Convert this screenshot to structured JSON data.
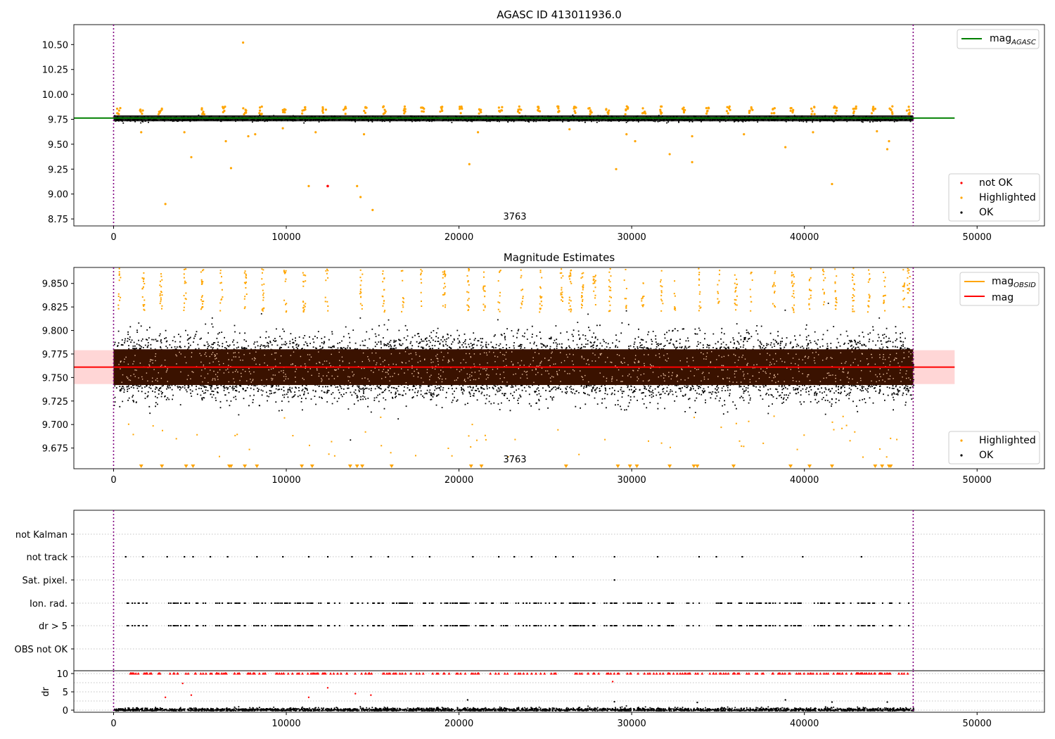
{
  "chart_data": [
    {
      "type": "scatter",
      "title": "AGASC ID 413011936.0",
      "xlabel": "",
      "ylabel": "",
      "xlim": [
        -2300,
        53900
      ],
      "ylim": [
        8.68,
        10.7
      ],
      "xticks": [
        0,
        10000,
        20000,
        30000,
        40000,
        50000
      ],
      "xtick_labels": [
        "0",
        "10000",
        "20000",
        "30000",
        "40000",
        "50000"
      ],
      "yticks": [
        8.75,
        9.0,
        9.25,
        9.5,
        9.75,
        10.0,
        10.25,
        10.5
      ],
      "ytick_labels": [
        "8.75",
        "9.00",
        "9.25",
        "9.50",
        "9.75",
        "10.00",
        "10.25",
        "10.50"
      ],
      "vlines": [
        0,
        46300
      ],
      "annotation": {
        "text": "3763",
        "x": 23000,
        "y": 8.73
      },
      "reference_line": {
        "name": "mag_AGASC",
        "value": 9.762,
        "x_range": [
          -2300,
          48700
        ],
        "color": "#008000"
      },
      "legend_top": [
        {
          "label": "mag",
          "subscript": "AGASC",
          "color": "#008000",
          "marker": "line"
        }
      ],
      "legend_bottom": [
        {
          "label": "not OK",
          "color": "#ff0000",
          "marker": "dot"
        },
        {
          "label": "Highlighted",
          "color": "#ffa500",
          "marker": "dot"
        },
        {
          "label": "OK",
          "color": "#000000",
          "marker": "dot"
        }
      ],
      "series": [
        {
          "name": "OK",
          "color": "#000000",
          "description_center": 9.76,
          "x_range": [
            0,
            46300
          ]
        },
        {
          "name": "Highlighted",
          "color": "#ffa500",
          "points": [
            [
              7500,
              10.52
            ],
            [
              3000,
              8.9
            ],
            [
              4500,
              9.37
            ],
            [
              6800,
              9.26
            ],
            [
              6500,
              9.53
            ],
            [
              11300,
              9.08
            ],
            [
              14100,
              9.08
            ],
            [
              14300,
              8.97
            ],
            [
              15000,
              8.84
            ],
            [
              20600,
              9.3
            ],
            [
              29100,
              9.25
            ],
            [
              30200,
              9.53
            ],
            [
              32200,
              9.4
            ],
            [
              33500,
              9.32
            ],
            [
              38900,
              9.47
            ],
            [
              41600,
              9.1
            ],
            [
              44800,
              9.45
            ],
            [
              44900,
              9.53
            ],
            [
              1600,
              9.62
            ],
            [
              4100,
              9.62
            ],
            [
              7800,
              9.58
            ],
            [
              8200,
              9.6
            ],
            [
              9800,
              9.66
            ],
            [
              11700,
              9.62
            ],
            [
              14500,
              9.6
            ],
            [
              21100,
              9.62
            ],
            [
              26400,
              9.65
            ],
            [
              29700,
              9.6
            ],
            [
              33500,
              9.58
            ],
            [
              36500,
              9.6
            ],
            [
              40500,
              9.62
            ],
            [
              44200,
              9.63
            ]
          ]
        },
        {
          "name": "not OK",
          "color": "#ff0000",
          "points": [
            [
              12400,
              9.08
            ]
          ]
        }
      ]
    },
    {
      "type": "scatter",
      "title": "Magnitude Estimates",
      "xlabel": "",
      "ylabel": "",
      "xlim": [
        -2300,
        53900
      ],
      "ylim": [
        9.653,
        9.867
      ],
      "xticks": [
        0,
        10000,
        20000,
        30000,
        40000,
        50000
      ],
      "xtick_labels": [
        "0",
        "10000",
        "20000",
        "30000",
        "40000",
        "50000"
      ],
      "yticks": [
        9.675,
        9.7,
        9.725,
        9.75,
        9.775,
        9.8,
        9.825,
        9.85
      ],
      "ytick_labels": [
        "9.675",
        "9.700",
        "9.725",
        "9.750",
        "9.775",
        "9.800",
        "9.825",
        "9.850"
      ],
      "vlines": [
        0,
        46300
      ],
      "annotation": {
        "text": "3763",
        "x": 23000,
        "y": 9.663
      },
      "reference_line": {
        "name": "mag",
        "value": 9.761,
        "x_range": [
          -2300,
          48700
        ],
        "color": "#ff0000"
      },
      "band": {
        "low": 9.743,
        "high": 9.779,
        "color": "#ffd6d6"
      },
      "obsid_line": {
        "value": 9.761,
        "color": "#ffa500"
      },
      "legend_top": [
        {
          "label": "mag",
          "subscript": "OBSID",
          "color": "#ffa500",
          "marker": "line"
        },
        {
          "label": "mag",
          "subscript": "",
          "color": "#ff0000",
          "marker": "line"
        }
      ],
      "legend_bottom": [
        {
          "label": "Highlighted",
          "color": "#ffa500",
          "marker": "dot"
        },
        {
          "label": "OK",
          "color": "#000000",
          "marker": "dot"
        }
      ],
      "series": [
        {
          "name": "OK",
          "color": "#000000",
          "description_center": 9.761,
          "x_range": [
            0,
            46300
          ]
        },
        {
          "name": "Highlighted",
          "color": "#ffa500",
          "description": "clusters above 9.82 and below 9.71 at observation boundaries"
        }
      ]
    },
    {
      "type": "scatter",
      "title": "",
      "xlim": [
        -2300,
        53900
      ],
      "categories": [
        "not Kalman",
        "not track",
        "Sat. pixel.",
        "Ion. rad.",
        "dr > 5",
        "OBS not OK"
      ],
      "xticks": [],
      "vlines": [
        0,
        46300
      ],
      "events": {
        "not track": [
          700,
          1700,
          3100,
          4100,
          4600,
          5600,
          6600,
          8300,
          9800,
          11300,
          12400,
          13800,
          14900,
          15900,
          17300,
          18300,
          20800,
          22300,
          23200,
          24200,
          25600,
          26600,
          29000,
          31500,
          33900,
          34900,
          36400,
          39900,
          43300
        ],
        "Sat. pixel.": [
          29000
        ],
        "Ion. rad.": "dense from 600 to 46000",
        "dr > 5": "dense from 600 to 46000"
      }
    },
    {
      "type": "scatter",
      "title": "",
      "ylabel": "dr",
      "xlim": [
        -2300,
        53900
      ],
      "ylim": [
        -0.5,
        10.5
      ],
      "xticks": [
        0,
        10000,
        20000,
        30000,
        40000,
        50000
      ],
      "xtick_labels": [
        "0",
        "10000",
        "20000",
        "30000",
        "40000",
        "50000"
      ],
      "yticks": [
        0,
        5,
        10
      ],
      "ytick_labels": [
        "0",
        "5",
        "10"
      ],
      "vlines": [
        0,
        46300
      ],
      "series": [
        {
          "name": "OK",
          "color": "#000000",
          "description": "dr near 0-1 across 0-46300"
        },
        {
          "name": "clipped",
          "color": "#ff0000",
          "marker": "triangle",
          "value": 10
        },
        {
          "name": "outliers",
          "color": "#ff0000",
          "points": [
            [
              3000,
              3.5
            ],
            [
              4000,
              7.3
            ],
            [
              4500,
              4.1
            ],
            [
              11300,
              3.5
            ],
            [
              12400,
              6.1
            ],
            [
              14000,
              4.5
            ],
            [
              14900,
              4.1
            ],
            [
              28900,
              7.8
            ]
          ]
        }
      ]
    }
  ]
}
